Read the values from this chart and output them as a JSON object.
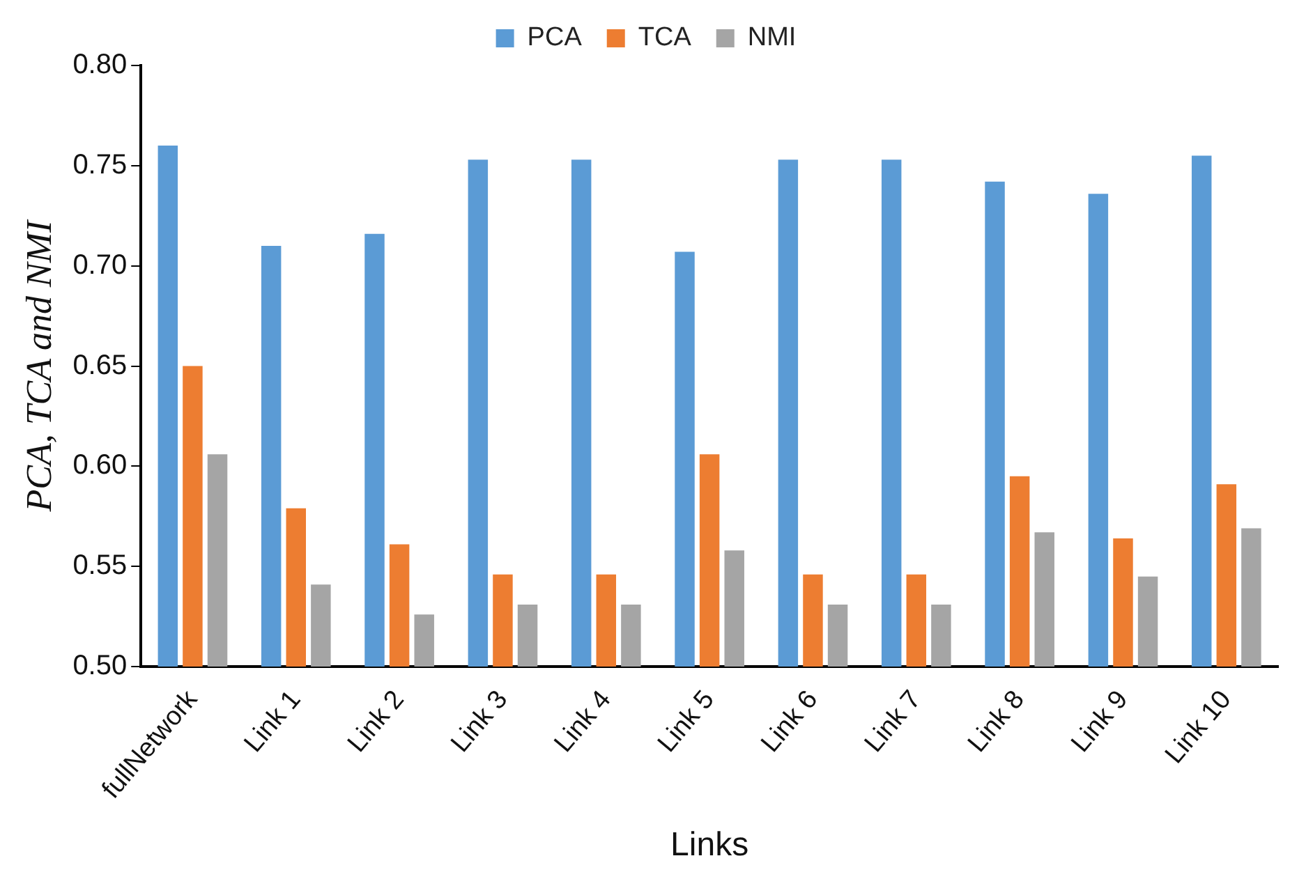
{
  "chart_data": {
    "type": "bar",
    "xlabel": "Links",
    "ylabel": "PCA, TCA and NMI",
    "categories": [
      "fullNetwork",
      "Link 1",
      "Link 2",
      "Link 3",
      "Link 4",
      "Link 5",
      "Link 6",
      "Link 7",
      "Link 8",
      "Link 9",
      "Link 10"
    ],
    "series": [
      {
        "name": "PCA",
        "color": "#5b9bd5",
        "values": [
          0.76,
          0.71,
          0.716,
          0.753,
          0.753,
          0.707,
          0.753,
          0.753,
          0.742,
          0.736,
          0.755
        ]
      },
      {
        "name": "TCA",
        "color": "#ed7d31",
        "values": [
          0.65,
          0.579,
          0.561,
          0.546,
          0.546,
          0.606,
          0.546,
          0.546,
          0.595,
          0.564,
          0.591
        ]
      },
      {
        "name": "NMI",
        "color": "#a5a5a5",
        "values": [
          0.606,
          0.541,
          0.526,
          0.531,
          0.531,
          0.558,
          0.531,
          0.531,
          0.567,
          0.545,
          0.569
        ]
      }
    ],
    "ylim": [
      0.5,
      0.8
    ],
    "yticks": [
      {
        "value": 0.5,
        "label": "0.50"
      },
      {
        "value": 0.55,
        "label": "0.55"
      },
      {
        "value": 0.6,
        "label": "0.60"
      },
      {
        "value": 0.65,
        "label": "0.65"
      },
      {
        "value": 0.7,
        "label": "0.70"
      },
      {
        "value": 0.75,
        "label": "0.75"
      },
      {
        "value": 0.8,
        "label": "0.80"
      }
    ],
    "grid": false,
    "legend": "top"
  }
}
